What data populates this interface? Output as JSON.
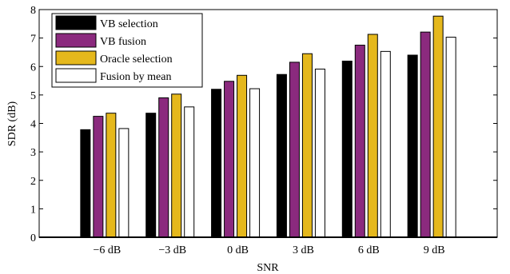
{
  "chart_data": {
    "type": "bar",
    "categories": [
      "−6 dB",
      "−3 dB",
      "0 dB",
      "3 dB",
      "6 dB",
      "9 dB"
    ],
    "series": [
      {
        "name": "VB selection",
        "color": "#000000",
        "values": [
          3.78,
          4.36,
          5.2,
          5.72,
          6.19,
          6.4
        ]
      },
      {
        "name": "VB fusion",
        "color": "#8b2a7e",
        "values": [
          4.25,
          4.9,
          5.48,
          6.15,
          6.75,
          7.21
        ]
      },
      {
        "name": "Oracle selection",
        "color": "#e5b81c",
        "values": [
          4.36,
          5.03,
          5.69,
          6.45,
          7.13,
          7.77
        ]
      },
      {
        "name": "Fusion by mean",
        "color": "#ffffff",
        "values": [
          3.82,
          4.58,
          5.22,
          5.91,
          6.53,
          7.03
        ]
      }
    ],
    "title": "",
    "xlabel": "SNR",
    "ylabel": "SDR (dB)",
    "ylim": [
      0,
      8
    ],
    "yticks": [
      0,
      1,
      2,
      3,
      4,
      5,
      6,
      7,
      8
    ],
    "grid": false,
    "legend_position": "top-left"
  }
}
